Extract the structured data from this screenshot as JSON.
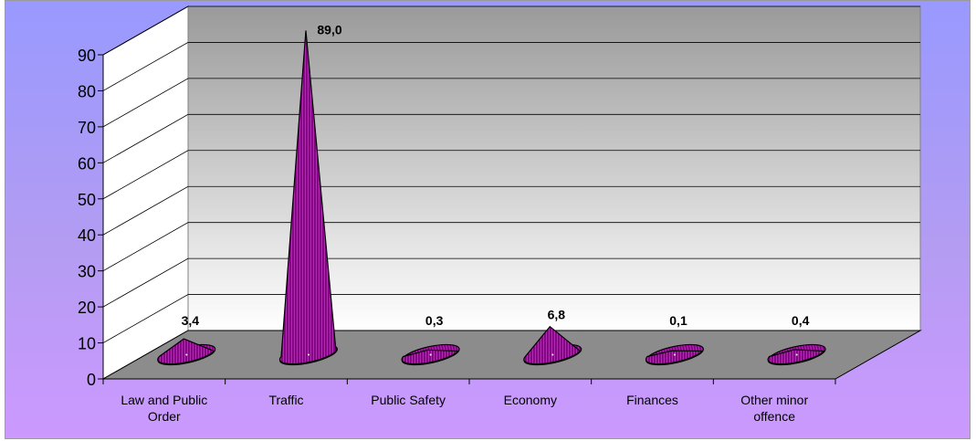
{
  "chart_data": {
    "type": "bar",
    "bar_shape": "cone",
    "view": "3d",
    "categories": [
      [
        "Law and Public",
        "Order"
      ],
      [
        "Traffic"
      ],
      [
        "Public Safety"
      ],
      [
        "Economy"
      ],
      [
        "Finances"
      ],
      [
        "Other minor",
        "offence"
      ]
    ],
    "values": [
      3.4,
      89.0,
      0.3,
      6.8,
      0.1,
      0.4
    ],
    "data_labels": [
      "3,4",
      "89,0",
      "0,3",
      "6,8",
      "0,1",
      "0,4"
    ],
    "ylim": [
      0,
      90
    ],
    "yticks": [
      0,
      10,
      20,
      30,
      40,
      50,
      60,
      70,
      80,
      90
    ],
    "grid": true,
    "legend": "none",
    "title": "",
    "xlabel": "",
    "ylabel": "",
    "colors": {
      "bar": "#990099",
      "floor": "#8c8c8c",
      "back_wall_top": "#9a9a9a",
      "back_wall_bottom": "#ffffff",
      "side_wall": "#ffffff",
      "background_top": "#9999ff",
      "background_bottom": "#cc99ff"
    }
  }
}
